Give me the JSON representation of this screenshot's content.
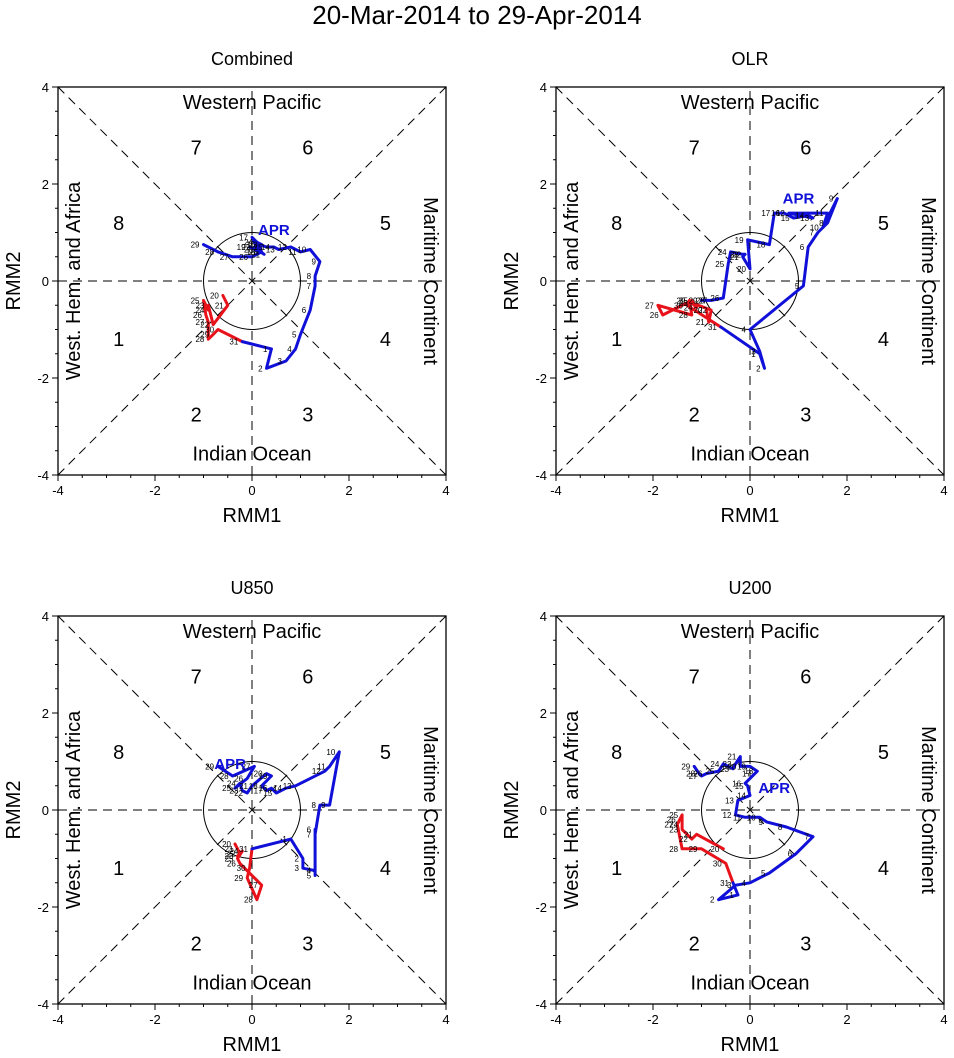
{
  "title": "20-Mar-2014 to 29-Apr-2014",
  "colors": {
    "march": "#e8121b",
    "april": "#1010d8",
    "axes": "#000000",
    "month_label": "#1010d8"
  },
  "chart_data": [
    {
      "type": "line",
      "title": "Combined",
      "xlabel": "RMM1",
      "ylabel": "RMM2",
      "xlim": [
        -4,
        4
      ],
      "ylim": [
        -4,
        4
      ],
      "ticks": [
        "-4",
        "-2",
        "0",
        "2",
        "4"
      ],
      "regions": {
        "top": "Western Pacific",
        "bottom": "Indian Ocean",
        "left": "West. Hem. and Africa",
        "right": "Maritime Continent"
      },
      "phases": [
        "1",
        "2",
        "3",
        "4",
        "5",
        "6",
        "7",
        "8"
      ],
      "month_label": "APR",
      "month_label_pos": [
        0.45,
        0.95
      ],
      "march": {
        "days": [
          20,
          21,
          22,
          23,
          24,
          25,
          26,
          27,
          28,
          29,
          30,
          31
        ],
        "points": [
          [
            -0.6,
            -0.3
          ],
          [
            -0.5,
            -0.5
          ],
          [
            -0.8,
            -0.9
          ],
          [
            -0.9,
            -0.5
          ],
          [
            -0.9,
            -0.6
          ],
          [
            -1.0,
            -0.4
          ],
          [
            -0.95,
            -0.7
          ],
          [
            -0.9,
            -0.85
          ],
          [
            -0.9,
            -1.2
          ],
          [
            -0.8,
            -1.1
          ],
          [
            -0.7,
            -1.0
          ],
          [
            -0.2,
            -1.25
          ]
        ]
      },
      "april": {
        "days": [
          1,
          2,
          3,
          4,
          5,
          6,
          7,
          8,
          9,
          10,
          11,
          12,
          13,
          14,
          15,
          16,
          17,
          18,
          19,
          20,
          21,
          22,
          23,
          24,
          25,
          26,
          27,
          28,
          29
        ],
        "points": [
          [
            0.4,
            -1.4
          ],
          [
            0.3,
            -1.8
          ],
          [
            0.7,
            -1.65
          ],
          [
            0.9,
            -1.4
          ],
          [
            1.0,
            -1.1
          ],
          [
            1.2,
            -0.6
          ],
          [
            1.3,
            -0.1
          ],
          [
            1.3,
            0.1
          ],
          [
            1.4,
            0.4
          ],
          [
            1.2,
            0.65
          ],
          [
            1.0,
            0.6
          ],
          [
            0.8,
            0.7
          ],
          [
            0.55,
            0.65
          ],
          [
            0.45,
            0.7
          ],
          [
            0.3,
            0.7
          ],
          [
            0.15,
            0.75
          ],
          [
            0.0,
            0.9
          ],
          [
            0.15,
            0.6
          ],
          [
            -0.05,
            0.7
          ],
          [
            0.1,
            0.65
          ],
          [
            0.25,
            0.55
          ],
          [
            0.05,
            0.7
          ],
          [
            0.2,
            0.75
          ],
          [
            0.1,
            0.8
          ],
          [
            0.2,
            0.6
          ],
          [
            0.0,
            0.5
          ],
          [
            -0.4,
            0.5
          ],
          [
            -0.7,
            0.6
          ],
          [
            -1.0,
            0.75
          ]
        ]
      }
    },
    {
      "type": "line",
      "title": "OLR",
      "xlabel": "RMM1",
      "ylabel": "RMM2",
      "xlim": [
        -4,
        4
      ],
      "ylim": [
        -4,
        4
      ],
      "ticks": [
        "-4",
        "-2",
        "0",
        "2",
        "4"
      ],
      "regions": {
        "top": "Western Pacific",
        "bottom": "Indian Ocean",
        "left": "West. Hem. and Africa",
        "right": "Maritime Continent"
      },
      "phases": [
        "1",
        "2",
        "3",
        "4",
        "5",
        "6",
        "7",
        "8"
      ],
      "month_label": "APR",
      "month_label_pos": [
        1.0,
        1.6
      ],
      "march": {
        "days": [
          20,
          21,
          22,
          23,
          24,
          25,
          26,
          27,
          28,
          29,
          30,
          31
        ],
        "points": [
          [
            -0.9,
            -0.6
          ],
          [
            -0.85,
            -0.85
          ],
          [
            -0.8,
            -0.6
          ],
          [
            -1.2,
            -0.45
          ],
          [
            -1.1,
            -0.55
          ],
          [
            -1.2,
            -0.4
          ],
          [
            -1.8,
            -0.7
          ],
          [
            -1.9,
            -0.5
          ],
          [
            -1.2,
            -0.7
          ],
          [
            -1.25,
            -0.4
          ],
          [
            -1.3,
            -0.5
          ],
          [
            -0.6,
            -0.95
          ]
        ]
      },
      "april": {
        "days": [
          1,
          2,
          3,
          4,
          5,
          6,
          7,
          8,
          9,
          10,
          11,
          12,
          13,
          14,
          15,
          16,
          17,
          18,
          19,
          20,
          21,
          22,
          23,
          24,
          25,
          26,
          27,
          28,
          29
        ],
        "points": [
          [
            0.2,
            -1.5
          ],
          [
            0.3,
            -1.8
          ],
          [
            0.2,
            -1.45
          ],
          [
            0.0,
            -1.0
          ],
          [
            1.1,
            -0.1
          ],
          [
            1.2,
            0.7
          ],
          [
            1.4,
            1.0
          ],
          [
            1.6,
            1.2
          ],
          [
            1.8,
            1.7
          ],
          [
            1.5,
            1.1
          ],
          [
            1.6,
            1.4
          ],
          [
            0.8,
            1.4
          ],
          [
            1.3,
            1.3
          ],
          [
            1.2,
            1.35
          ],
          [
            0.9,
            1.3
          ],
          [
            0.7,
            1.4
          ],
          [
            0.5,
            1.4
          ],
          [
            0.4,
            0.75
          ],
          [
            -0.05,
            0.85
          ],
          [
            0.0,
            0.25
          ],
          [
            -0.15,
            0.5
          ],
          [
            -0.1,
            0.55
          ],
          [
            -0.15,
            0.55
          ],
          [
            -0.4,
            0.6
          ],
          [
            -0.45,
            0.35
          ],
          [
            -0.55,
            -0.35
          ],
          [
            -0.8,
            -0.4
          ],
          [
            -0.85,
            -0.4
          ],
          [
            -1.0,
            -0.4
          ]
        ]
      }
    },
    {
      "type": "line",
      "title": "U850",
      "xlabel": "RMM1",
      "ylabel": "RMM2",
      "xlim": [
        -4,
        4
      ],
      "ylim": [
        -4,
        4
      ],
      "ticks": [
        "-4",
        "-2",
        "0",
        "2",
        "4"
      ],
      "regions": {
        "top": "Western Pacific",
        "bottom": "Indian Ocean",
        "left": "West. Hem. and Africa",
        "right": "Maritime Continent"
      },
      "phases": [
        "1",
        "2",
        "3",
        "4",
        "5",
        "6",
        "7",
        "8"
      ],
      "month_label": "APR",
      "month_label_pos": [
        -0.45,
        0.85
      ],
      "march": {
        "days": [
          20,
          21,
          22,
          23,
          24,
          25,
          26,
          27,
          28,
          29,
          30,
          31
        ],
        "points": [
          [
            -0.35,
            -0.7
          ],
          [
            -0.3,
            -0.8
          ],
          [
            -0.25,
            -0.9
          ],
          [
            -0.3,
            -0.95
          ],
          [
            -0.2,
            -0.85
          ],
          [
            -0.3,
            -1.0
          ],
          [
            -0.25,
            -1.1
          ],
          [
            0.2,
            -1.55
          ],
          [
            0.1,
            -1.85
          ],
          [
            -0.1,
            -1.4
          ],
          [
            -0.05,
            -1.2
          ],
          [
            0.0,
            -0.8
          ]
        ]
      },
      "april": {
        "days": [
          1,
          2,
          3,
          4,
          5,
          6,
          7,
          8,
          9,
          10,
          11,
          12,
          13,
          14,
          15,
          16,
          17,
          18,
          19,
          20,
          21,
          22,
          23,
          24,
          25,
          26,
          27,
          28,
          29
        ],
        "points": [
          [
            0.8,
            -0.6
          ],
          [
            1.05,
            -1.0
          ],
          [
            1.05,
            -1.2
          ],
          [
            1.3,
            -1.25
          ],
          [
            1.3,
            -1.35
          ],
          [
            1.3,
            -0.4
          ],
          [
            1.3,
            -0.5
          ],
          [
            1.4,
            0.1
          ],
          [
            1.6,
            0.1
          ],
          [
            1.8,
            1.2
          ],
          [
            1.6,
            0.9
          ],
          [
            1.5,
            0.8
          ],
          [
            0.9,
            0.5
          ],
          [
            0.7,
            0.45
          ],
          [
            0.5,
            0.35
          ],
          [
            0.4,
            0.45
          ],
          [
            0.3,
            0.4
          ],
          [
            0.2,
            0.5
          ],
          [
            0.4,
            0.7
          ],
          [
            0.3,
            0.75
          ],
          [
            0.0,
            0.5
          ],
          [
            -0.1,
            0.35
          ],
          [
            -0.2,
            0.4
          ],
          [
            -0.25,
            0.55
          ],
          [
            -0.35,
            0.45
          ],
          [
            -0.1,
            0.65
          ],
          [
            0.05,
            0.9
          ],
          [
            -0.4,
            0.7
          ],
          [
            -0.7,
            0.9
          ]
        ]
      }
    },
    {
      "type": "line",
      "title": "U200",
      "xlabel": "RMM1",
      "ylabel": "RMM2",
      "xlim": [
        -4,
        4
      ],
      "ylim": [
        -4,
        4
      ],
      "ticks": [
        "-4",
        "-2",
        "0",
        "2",
        "4"
      ],
      "regions": {
        "top": "Western Pacific",
        "bottom": "Indian Ocean",
        "left": "West. Hem. and Africa",
        "right": "Maritime Continent"
      },
      "phases": [
        "1",
        "2",
        "3",
        "4",
        "5",
        "6",
        "7",
        "8"
      ],
      "month_label": "APR",
      "month_label_pos": [
        0.5,
        0.35
      ],
      "march": {
        "days": [
          20,
          21,
          22,
          23,
          24,
          25,
          26,
          27,
          28,
          29,
          30,
          31
        ],
        "points": [
          [
            -0.55,
            -0.8
          ],
          [
            -1.1,
            -0.5
          ],
          [
            -1.2,
            -0.6
          ],
          [
            -1.4,
            -0.4
          ],
          [
            -1.4,
            -0.3
          ],
          [
            -1.4,
            -0.1
          ],
          [
            -1.45,
            -0.2
          ],
          [
            -1.5,
            -0.3
          ],
          [
            -1.4,
            -0.8
          ],
          [
            -1.0,
            -0.8
          ],
          [
            -0.5,
            -1.1
          ],
          [
            -0.35,
            -1.5
          ]
        ]
      },
      "april": {
        "days": [
          1,
          2,
          3,
          4,
          5,
          6,
          7,
          8,
          9,
          10,
          11,
          12,
          13,
          14,
          15,
          16,
          17,
          18,
          19,
          20,
          21,
          22,
          23,
          24,
          25,
          26,
          27,
          28,
          29
        ],
        "points": [
          [
            -0.25,
            -1.75
          ],
          [
            -0.65,
            -1.85
          ],
          [
            -0.3,
            -1.55
          ],
          [
            0.0,
            -1.5
          ],
          [
            0.4,
            -1.3
          ],
          [
            0.95,
            -0.9
          ],
          [
            1.3,
            -0.55
          ],
          [
            0.75,
            -0.35
          ],
          [
            0.35,
            -0.25
          ],
          [
            0.2,
            -0.15
          ],
          [
            -0.1,
            -0.15
          ],
          [
            -0.3,
            -0.1
          ],
          [
            -0.25,
            0.2
          ],
          [
            0.0,
            0.3
          ],
          [
            -0.05,
            0.5
          ],
          [
            -0.1,
            0.55
          ],
          [
            0.1,
            0.75
          ],
          [
            0.15,
            0.8
          ],
          [
            0.0,
            0.9
          ],
          [
            -0.2,
            0.9
          ],
          [
            -0.2,
            1.1
          ],
          [
            -0.3,
            0.95
          ],
          [
            -0.35,
            0.85
          ],
          [
            -0.55,
            0.95
          ],
          [
            -0.65,
            0.8
          ],
          [
            -0.9,
            0.75
          ],
          [
            -1.0,
            0.7
          ],
          [
            -1.05,
            0.75
          ],
          [
            -1.15,
            0.9
          ]
        ]
      }
    }
  ]
}
